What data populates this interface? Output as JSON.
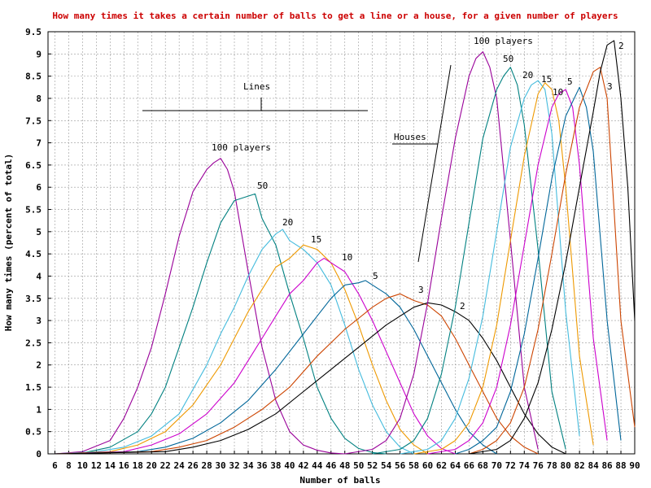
{
  "chart_data": {
    "type": "line",
    "title": "How many times it takes a certain number of balls to get a line or a house, for a given number of players",
    "xlabel": "Number of balls",
    "ylabel": "How many times (percent of total)",
    "xlim": [
      5,
      90
    ],
    "ylim": [
      0,
      9.5
    ],
    "xticks": [
      6,
      8,
      10,
      12,
      14,
      16,
      18,
      20,
      22,
      24,
      26,
      28,
      30,
      32,
      34,
      36,
      38,
      40,
      42,
      44,
      46,
      48,
      50,
      52,
      54,
      56,
      58,
      60,
      62,
      64,
      66,
      68,
      70,
      72,
      74,
      76,
      78,
      80,
      82,
      84,
      86,
      88,
      90
    ],
    "yticks": [
      0,
      0.5,
      1,
      1.5,
      2,
      2.5,
      3,
      3.5,
      4,
      4.5,
      5,
      5.5,
      6,
      6.5,
      7,
      7.5,
      8,
      8.5,
      9,
      9.5
    ],
    "grid": true,
    "annotations": {
      "lines_label": "Lines",
      "houses_label": "Houses",
      "lines_peaks": [
        "100 players",
        "50",
        "20",
        "15",
        "10",
        "5",
        "3",
        "2"
      ],
      "houses_peaks": [
        "100 players",
        "50",
        "20",
        "15",
        "10",
        "5",
        "3",
        "2"
      ]
    },
    "colors": {
      "100": "#990099",
      "50": "#008080",
      "20": "#44bbdd",
      "15": "#ee9900",
      "10": "#cc00cc",
      "5": "#006699",
      "3": "#cc4400",
      "2": "#000000"
    },
    "series": [
      {
        "group": "lines",
        "players": 100,
        "peak": [
          30,
          6.65
        ],
        "x": [
          6,
          10,
          14,
          16,
          18,
          20,
          22,
          24,
          26,
          28,
          29,
          30,
          31,
          32,
          34,
          36,
          38,
          40,
          42,
          44,
          46,
          48
        ],
        "values": [
          0,
          0.05,
          0.3,
          0.8,
          1.5,
          2.4,
          3.6,
          4.9,
          5.9,
          6.4,
          6.55,
          6.65,
          6.4,
          5.9,
          4.1,
          2.4,
          1.2,
          0.5,
          0.2,
          0.08,
          0.02,
          0
        ]
      },
      {
        "group": "lines",
        "players": 50,
        "peak": [
          35,
          5.85
        ],
        "x": [
          6,
          10,
          14,
          18,
          20,
          22,
          24,
          26,
          28,
          30,
          32,
          34,
          35,
          36,
          38,
          40,
          42,
          44,
          46,
          48,
          50,
          52,
          54
        ],
        "values": [
          0,
          0.02,
          0.15,
          0.5,
          0.9,
          1.5,
          2.4,
          3.3,
          4.3,
          5.2,
          5.7,
          5.8,
          5.85,
          5.3,
          4.7,
          3.6,
          2.6,
          1.5,
          0.8,
          0.35,
          0.12,
          0.03,
          0
        ]
      },
      {
        "group": "lines",
        "players": 20,
        "peak": [
          39,
          5.05
        ],
        "x": [
          6,
          12,
          16,
          20,
          24,
          28,
          30,
          32,
          34,
          36,
          38,
          39,
          40,
          42,
          44,
          46,
          48,
          50,
          52,
          54,
          56,
          58
        ],
        "values": [
          0,
          0.05,
          0.15,
          0.4,
          0.9,
          2.0,
          2.7,
          3.3,
          4.0,
          4.6,
          4.95,
          5.05,
          4.8,
          4.6,
          4.3,
          3.8,
          2.9,
          1.9,
          1.1,
          0.5,
          0.15,
          0
        ]
      },
      {
        "group": "lines",
        "players": 15,
        "peak": [
          42,
          4.7
        ],
        "x": [
          6,
          14,
          18,
          22,
          26,
          30,
          32,
          34,
          36,
          38,
          40,
          42,
          44,
          46,
          48,
          50,
          52,
          54,
          56,
          58,
          60
        ],
        "values": [
          0,
          0.05,
          0.2,
          0.5,
          1.1,
          2.0,
          2.6,
          3.2,
          3.7,
          4.2,
          4.4,
          4.7,
          4.6,
          4.3,
          3.7,
          2.9,
          2.0,
          1.2,
          0.55,
          0.2,
          0
        ]
      },
      {
        "group": "lines",
        "players": 10,
        "peak": [
          45,
          4.4
        ],
        "x": [
          6,
          16,
          20,
          24,
          28,
          32,
          34,
          36,
          38,
          40,
          42,
          44,
          45,
          46,
          48,
          50,
          52,
          54,
          56,
          58,
          60,
          62,
          64
        ],
        "values": [
          0,
          0.05,
          0.2,
          0.45,
          0.9,
          1.6,
          2.1,
          2.6,
          3.1,
          3.6,
          3.9,
          4.3,
          4.4,
          4.3,
          4.1,
          3.6,
          3.0,
          2.3,
          1.6,
          0.9,
          0.4,
          0.12,
          0
        ]
      },
      {
        "group": "lines",
        "players": 5,
        "peak": [
          51,
          3.9
        ],
        "x": [
          6,
          18,
          22,
          26,
          30,
          34,
          38,
          42,
          44,
          46,
          48,
          50,
          51,
          52,
          54,
          56,
          58,
          60,
          62,
          64,
          66,
          68,
          70
        ],
        "values": [
          0,
          0.05,
          0.15,
          0.35,
          0.7,
          1.2,
          1.9,
          2.7,
          3.1,
          3.5,
          3.8,
          3.85,
          3.9,
          3.8,
          3.6,
          3.3,
          2.8,
          2.2,
          1.6,
          1.0,
          0.5,
          0.2,
          0
        ]
      },
      {
        "group": "lines",
        "players": 3,
        "peak": [
          56,
          3.6
        ],
        "x": [
          6,
          20,
          24,
          28,
          32,
          36,
          40,
          44,
          48,
          52,
          54,
          56,
          58,
          60,
          62,
          64,
          66,
          68,
          70,
          72,
          74,
          76
        ],
        "values": [
          0,
          0.05,
          0.15,
          0.3,
          0.6,
          1.0,
          1.5,
          2.2,
          2.8,
          3.3,
          3.5,
          3.6,
          3.45,
          3.35,
          3.1,
          2.6,
          2.0,
          1.4,
          0.8,
          0.4,
          0.15,
          0
        ]
      },
      {
        "group": "lines",
        "players": 2,
        "peak": [
          60,
          3.4
        ],
        "x": [
          6,
          22,
          26,
          30,
          34,
          38,
          42,
          46,
          50,
          54,
          58,
          60,
          62,
          64,
          66,
          68,
          70,
          72,
          74,
          76,
          78,
          80
        ],
        "values": [
          0,
          0.05,
          0.15,
          0.3,
          0.55,
          0.9,
          1.4,
          1.9,
          2.4,
          2.9,
          3.3,
          3.4,
          3.35,
          3.2,
          3.0,
          2.6,
          2.1,
          1.5,
          0.9,
          0.45,
          0.15,
          0
        ]
      },
      {
        "group": "houses",
        "players": 100,
        "peak": [
          68,
          9.05
        ],
        "x": [
          48,
          52,
          54,
          56,
          58,
          60,
          62,
          64,
          66,
          67,
          68,
          69,
          70,
          72,
          74,
          76
        ],
        "values": [
          0,
          0.1,
          0.3,
          0.8,
          1.8,
          3.4,
          5.3,
          7.1,
          8.5,
          8.9,
          9.05,
          8.7,
          8.0,
          4.8,
          1.5,
          0.1
        ]
      },
      {
        "group": "houses",
        "players": 50,
        "peak": [
          72,
          8.7
        ],
        "x": [
          52,
          56,
          58,
          60,
          62,
          64,
          66,
          68,
          70,
          71,
          72,
          73,
          74,
          76,
          78,
          80
        ],
        "values": [
          0,
          0.1,
          0.3,
          0.8,
          1.8,
          3.3,
          5.2,
          7.1,
          8.2,
          8.5,
          8.7,
          8.3,
          7.4,
          4.6,
          1.4,
          0.1
        ]
      },
      {
        "group": "houses",
        "players": 20,
        "peak": [
          76,
          8.4
        ],
        "x": [
          56,
          60,
          62,
          64,
          66,
          68,
          70,
          72,
          74,
          75,
          76,
          77,
          78,
          80,
          82
        ],
        "values": [
          0,
          0.1,
          0.3,
          0.8,
          1.7,
          3.1,
          5.0,
          6.9,
          8.0,
          8.3,
          8.4,
          8.2,
          7.2,
          3.2,
          0.4
        ]
      },
      {
        "group": "houses",
        "players": 15,
        "peak": [
          77,
          8.35
        ],
        "x": [
          58,
          62,
          64,
          66,
          68,
          70,
          72,
          74,
          76,
          77,
          78,
          79,
          80,
          82,
          84
        ],
        "values": [
          0,
          0.1,
          0.3,
          0.7,
          1.5,
          2.9,
          4.8,
          6.7,
          8.1,
          8.35,
          8.2,
          7.5,
          6.0,
          2.2,
          0.2
        ]
      },
      {
        "group": "houses",
        "players": 10,
        "peak": [
          80,
          8.2
        ],
        "x": [
          60,
          64,
          66,
          68,
          70,
          72,
          74,
          76,
          78,
          79,
          80,
          81,
          82,
          84,
          86
        ],
        "values": [
          0,
          0.1,
          0.3,
          0.7,
          1.5,
          2.9,
          4.7,
          6.5,
          7.8,
          8.1,
          8.2,
          7.8,
          6.5,
          2.6,
          0.3
        ]
      },
      {
        "group": "houses",
        "players": 5,
        "peak": [
          82,
          8.25
        ],
        "x": [
          64,
          66,
          68,
          70,
          72,
          74,
          76,
          78,
          80,
          82,
          83,
          84,
          86,
          88
        ],
        "values": [
          0,
          0.1,
          0.3,
          0.6,
          1.4,
          2.7,
          4.4,
          6.2,
          7.6,
          8.25,
          7.8,
          6.8,
          3.0,
          0.3
        ]
      },
      {
        "group": "houses",
        "players": 3,
        "peak": [
          85,
          8.7
        ],
        "x": [
          66,
          68,
          70,
          72,
          74,
          76,
          78,
          80,
          82,
          84,
          85,
          86,
          88,
          90
        ],
        "values": [
          0,
          0.1,
          0.3,
          0.7,
          1.5,
          2.8,
          4.5,
          6.3,
          7.8,
          8.6,
          8.7,
          8.0,
          3.0,
          0.6
        ]
      },
      {
        "group": "houses",
        "players": 2,
        "peak": [
          87,
          9.3
        ],
        "x": [
          66,
          70,
          72,
          74,
          76,
          78,
          80,
          82,
          84,
          85,
          86,
          87,
          88,
          89,
          90
        ],
        "values": [
          0,
          0.1,
          0.3,
          0.8,
          1.6,
          2.8,
          4.3,
          6.0,
          7.7,
          8.6,
          9.2,
          9.3,
          8.0,
          6.0,
          3.0
        ]
      }
    ]
  }
}
